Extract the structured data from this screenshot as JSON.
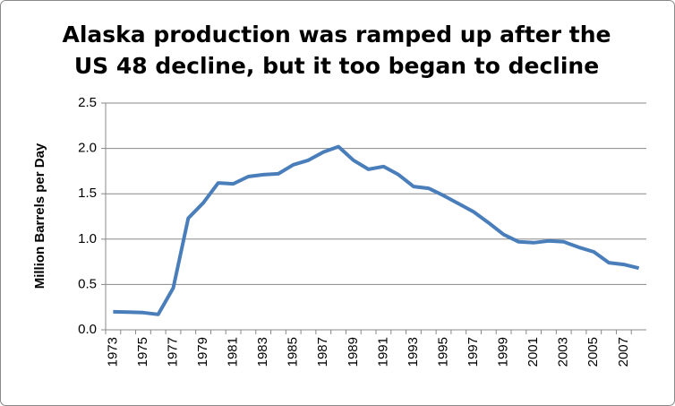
{
  "chart_data": {
    "type": "line",
    "title": [
      "Alaska production was ramped up after the",
      "US 48 decline, but it too began to decline"
    ],
    "y_label": "Million Barrels  per  Day",
    "categories": [
      "1973",
      null,
      "1975",
      null,
      "1977",
      null,
      "1979",
      null,
      "1981",
      null,
      "1983",
      null,
      "1985",
      null,
      "1987",
      null,
      "1989",
      null,
      "1991",
      null,
      "1993",
      null,
      "1995",
      null,
      "1997",
      null,
      "1999",
      null,
      "2001",
      null,
      "2003",
      null,
      "2005",
      null,
      "2007",
      null
    ],
    "values": [
      0.2,
      0.195,
      0.19,
      0.17,
      0.46,
      1.23,
      1.4,
      1.62,
      1.61,
      1.69,
      1.71,
      1.72,
      1.82,
      1.87,
      1.96,
      2.02,
      1.87,
      1.77,
      1.8,
      1.71,
      1.58,
      1.56,
      1.48,
      1.39,
      1.3,
      1.18,
      1.05,
      0.97,
      0.96,
      0.98,
      0.97,
      0.91,
      0.86,
      0.74,
      0.72,
      0.68
    ],
    "color": "#4a7ebb",
    "ylim": [
      0,
      2.5
    ],
    "yticks": [
      {
        "value": 0,
        "label": "0.0"
      },
      {
        "value": 0.5,
        "label": "0.5"
      },
      {
        "value": 1,
        "label": "1.0"
      },
      {
        "value": 1.5,
        "label": "1.5"
      },
      {
        "value": 2,
        "label": "2.0"
      },
      {
        "value": 2.5,
        "label": "2.5"
      }
    ],
    "grid": true
  }
}
